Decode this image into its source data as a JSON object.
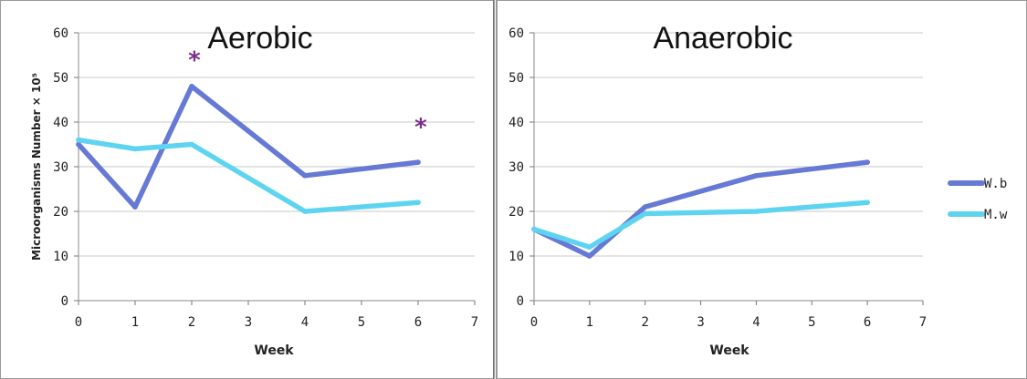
{
  "chart_data": [
    {
      "type": "line",
      "title": "Aerobic",
      "xlabel": "Week",
      "ylabel": "Microorganisms Number × 10⁵",
      "xlim": [
        0,
        7
      ],
      "ylim": [
        0,
        60
      ],
      "xticks": [
        "0",
        "1",
        "2",
        "3",
        "4",
        "5",
        "6",
        "7"
      ],
      "yticks": [
        "0",
        "10",
        "20",
        "30",
        "40",
        "50",
        "60"
      ],
      "grid": true,
      "series": [
        {
          "name": "W.b",
          "x": [
            0,
            1,
            2,
            4,
            6
          ],
          "y": [
            35,
            21,
            48,
            28,
            31
          ],
          "color": "#6679d4"
        },
        {
          "name": "M.w",
          "x": [
            0,
            1,
            2,
            4,
            6
          ],
          "y": [
            36,
            34,
            35,
            20,
            22
          ],
          "color": "#5fd4f0"
        }
      ],
      "annotations": [
        {
          "text": "*",
          "x": 2,
          "y": 55,
          "color": "#7b2c8c"
        },
        {
          "text": "*",
          "x": 6,
          "y": 40,
          "color": "#7b2c8c"
        }
      ]
    },
    {
      "type": "line",
      "title": "Anaerobic",
      "xlabel": "Week",
      "ylabel": "",
      "xlim": [
        0,
        7
      ],
      "ylim": [
        0,
        60
      ],
      "xticks": [
        "0",
        "1",
        "2",
        "3",
        "4",
        "5",
        "6",
        "7"
      ],
      "yticks": [
        "0",
        "10",
        "20",
        "30",
        "40",
        "50",
        "60"
      ],
      "grid": true,
      "series": [
        {
          "name": "W.b",
          "x": [
            0,
            1,
            2,
            4,
            6
          ],
          "y": [
            16,
            10,
            21,
            28,
            31
          ],
          "color": "#6679d4"
        },
        {
          "name": "M.w",
          "x": [
            0,
            1,
            2,
            4,
            6
          ],
          "y": [
            16,
            12,
            19.5,
            20,
            22
          ],
          "color": "#5fd4f0"
        }
      ],
      "annotations": []
    }
  ],
  "legend": {
    "placement": "right",
    "items": [
      {
        "label": "W.b",
        "color": "#6679d4"
      },
      {
        "label": "M.w",
        "color": "#5fd4f0"
      }
    ]
  }
}
